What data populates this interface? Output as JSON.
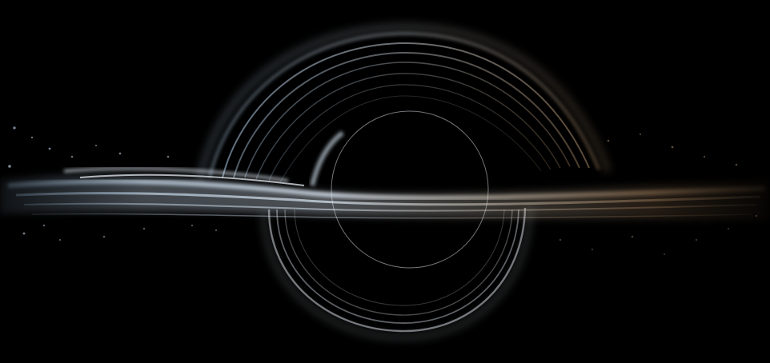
{
  "image": {
    "subject": "black-hole-accretion-disk",
    "colors": {
      "background": "#000000",
      "hot_side": "#cfe6ff",
      "cool_side": "#c9a27a",
      "ring": "#d8dde6"
    }
  }
}
